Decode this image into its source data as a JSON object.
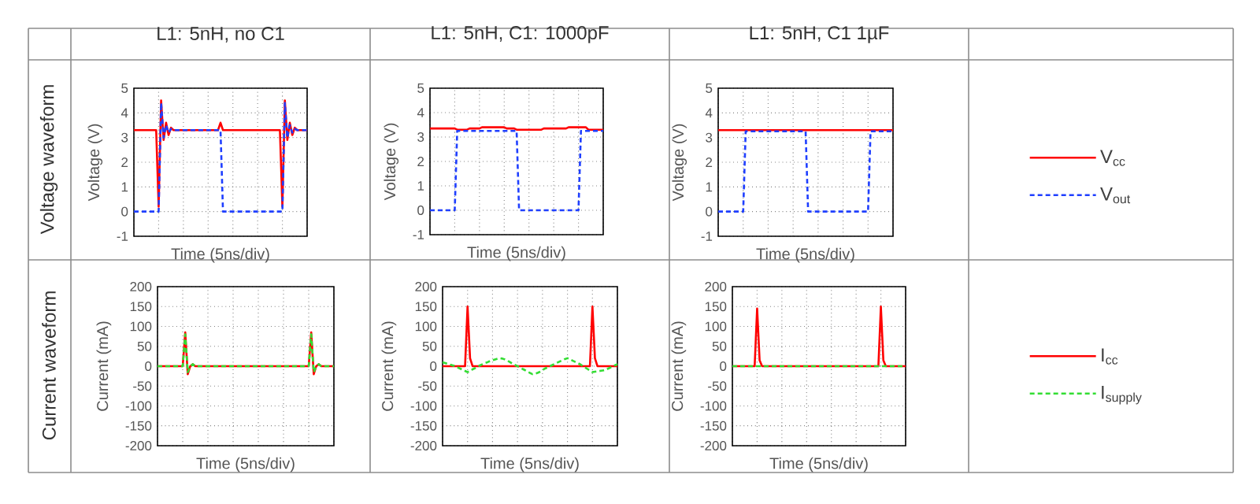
{
  "chart_data": [
    {
      "type": "line",
      "title": "L1: 5nH, no C1",
      "xlabel": "Time (5ns/div)",
      "ylabel": "Voltage (V)",
      "annotations": [
        "Voltage waveform"
      ],
      "categories": [
        null,
        null,
        null,
        null,
        null,
        null,
        null,
        null,
        null,
        null,
        null,
        null,
        null,
        null,
        null,
        null,
        null,
        null,
        null,
        null,
        null,
        null,
        null,
        null,
        null,
        null,
        null,
        null,
        null,
        null,
        null,
        null,
        null,
        null,
        null,
        null,
        null,
        null,
        null,
        null,
        null,
        null,
        null,
        null,
        null,
        null,
        null,
        null,
        null,
        null,
        null,
        null,
        null,
        null,
        null,
        null,
        null,
        null,
        null,
        null,
        null,
        null,
        null,
        null,
        null,
        null,
        null,
        null,
        null,
        null,
        null
      ],
      "ylim": [
        -1,
        5
      ],
      "yticks": [
        -1,
        0,
        1,
        2,
        3,
        4,
        5
      ],
      "tick_labels": "y",
      "grid": true,
      "legend": false,
      "series": [
        {
          "color": "#ff0000",
          "line_style": "solid",
          "values": [
            3.3,
            3.3,
            3.3,
            3.3,
            3.3,
            3.3,
            3.3,
            3.3,
            3.3,
            3.3,
            0.2,
            4.5,
            2.9,
            3.6,
            3.1,
            3.4,
            3.3,
            3.3,
            3.3,
            3.3,
            3.3,
            3.3,
            3.3,
            3.3,
            3.3,
            3.3,
            3.3,
            3.3,
            3.3,
            3.3,
            3.3,
            3.3,
            3.3,
            3.3,
            3.3,
            3.6,
            3.3,
            3.3,
            3.3,
            3.3,
            3.3,
            3.3,
            3.3,
            3.3,
            3.3,
            3.3,
            3.3,
            3.3,
            3.3,
            3.3,
            3.3,
            3.3,
            3.3,
            3.3,
            3.3,
            3.3,
            3.3,
            3.3,
            3.3,
            3.3,
            0.2,
            4.5,
            2.9,
            3.6,
            3.1,
            3.4,
            3.3,
            3.3,
            3.3,
            3.3,
            3.3
          ]
        },
        {
          "color": "#1f3fff",
          "line_style": "dashed",
          "values": [
            0,
            0,
            0,
            0,
            0,
            0,
            0,
            0,
            0,
            0,
            0,
            4.4,
            3.0,
            3.5,
            3.2,
            3.35,
            3.3,
            3.3,
            3.3,
            3.3,
            3.3,
            3.3,
            3.3,
            3.3,
            3.3,
            3.3,
            3.3,
            3.3,
            3.3,
            3.3,
            3.3,
            3.3,
            3.3,
            3.3,
            3.3,
            3.3,
            0,
            0,
            0,
            0,
            0,
            0,
            0,
            0,
            0,
            0,
            0,
            0,
            0,
            0,
            0,
            0,
            0,
            0,
            0,
            0,
            0,
            0,
            0,
            0,
            0,
            4.4,
            3.0,
            3.5,
            3.2,
            3.35,
            3.3,
            3.3,
            3.3,
            3.3,
            3.3
          ]
        }
      ]
    },
    {
      "type": "line",
      "title": "L1: 5nH, C1: 1000pF",
      "xlabel": "Time (5ns/div)",
      "ylabel": "Voltage (V)",
      "categories": [
        null,
        null,
        null,
        null,
        null,
        null,
        null,
        null,
        null,
        null,
        null,
        null,
        null,
        null,
        null,
        null,
        null,
        null,
        null,
        null,
        null,
        null,
        null,
        null,
        null,
        null,
        null,
        null,
        null,
        null,
        null,
        null,
        null,
        null,
        null,
        null,
        null,
        null,
        null,
        null,
        null,
        null,
        null,
        null,
        null,
        null,
        null,
        null,
        null,
        null,
        null,
        null,
        null,
        null,
        null,
        null,
        null,
        null,
        null,
        null,
        null,
        null,
        null,
        null,
        null,
        null,
        null,
        null,
        null,
        null,
        null
      ],
      "ylim": [
        -1,
        5
      ],
      "yticks": [
        -1,
        0,
        1,
        2,
        3,
        4,
        5
      ],
      "tick_labels": "y",
      "grid": true,
      "legend": false,
      "series": [
        {
          "color": "#ff0000",
          "line_style": "solid",
          "values": [
            3.35,
            3.35,
            3.35,
            3.35,
            3.35,
            3.35,
            3.35,
            3.35,
            3.35,
            3.35,
            3.35,
            3.3,
            3.3,
            3.3,
            3.3,
            3.3,
            3.35,
            3.35,
            3.35,
            3.35,
            3.35,
            3.4,
            3.4,
            3.4,
            3.4,
            3.4,
            3.4,
            3.4,
            3.4,
            3.4,
            3.4,
            3.35,
            3.35,
            3.35,
            3.35,
            3.3,
            3.3,
            3.3,
            3.3,
            3.3,
            3.3,
            3.3,
            3.3,
            3.3,
            3.3,
            3.3,
            3.35,
            3.35,
            3.35,
            3.35,
            3.35,
            3.35,
            3.35,
            3.35,
            3.35,
            3.35,
            3.4,
            3.4,
            3.4,
            3.4,
            3.4,
            3.4,
            3.4,
            3.4,
            3.3,
            3.3,
            3.3,
            3.3,
            3.3,
            3.3,
            3.3
          ]
        },
        {
          "color": "#1f3fff",
          "line_style": "dashed",
          "values": [
            0,
            0,
            0,
            0,
            0,
            0,
            0,
            0,
            0,
            0,
            0,
            3.25,
            3.25,
            3.25,
            3.25,
            3.25,
            3.25,
            3.25,
            3.25,
            3.25,
            3.25,
            3.25,
            3.25,
            3.25,
            3.25,
            3.25,
            3.25,
            3.25,
            3.25,
            3.25,
            3.25,
            3.25,
            3.25,
            3.25,
            3.25,
            3.25,
            0,
            0,
            0,
            0,
            0,
            0,
            0,
            0,
            0,
            0,
            0,
            0,
            0,
            0,
            0,
            0,
            0,
            0,
            0,
            0,
            0,
            0,
            0,
            0,
            0,
            3.25,
            3.25,
            3.25,
            3.25,
            3.25,
            3.25,
            3.25,
            3.25,
            3.25,
            3.25
          ]
        }
      ]
    },
    {
      "type": "line",
      "title": "L1: 5nH, C1 1µF",
      "xlabel": "Time (5ns/div)",
      "ylabel": "Voltage (V)",
      "categories": [
        null,
        null,
        null,
        null,
        null,
        null,
        null,
        null,
        null,
        null,
        null,
        null,
        null,
        null,
        null,
        null,
        null,
        null,
        null,
        null,
        null,
        null,
        null,
        null,
        null,
        null,
        null,
        null,
        null,
        null,
        null,
        null,
        null,
        null,
        null,
        null,
        null,
        null,
        null,
        null,
        null,
        null,
        null,
        null,
        null,
        null,
        null,
        null,
        null,
        null,
        null,
        null,
        null,
        null,
        null,
        null,
        null,
        null,
        null,
        null,
        null,
        null,
        null,
        null,
        null,
        null,
        null,
        null,
        null,
        null,
        null
      ],
      "ylim": [
        -1,
        5
      ],
      "yticks": [
        -1,
        0,
        1,
        2,
        3,
        4,
        5
      ],
      "tick_labels": "y",
      "grid": true,
      "legend": "right",
      "series": [
        {
          "name": "V$_{cc}$",
          "color": "#ff0000",
          "line_style": "solid",
          "values": [
            3.3,
            3.3,
            3.3,
            3.3,
            3.3,
            3.3,
            3.3,
            3.3,
            3.3,
            3.3,
            3.3,
            3.3,
            3.3,
            3.3,
            3.3,
            3.3,
            3.3,
            3.3,
            3.3,
            3.3,
            3.3,
            3.3,
            3.3,
            3.3,
            3.3,
            3.3,
            3.3,
            3.3,
            3.3,
            3.3,
            3.3,
            3.3,
            3.3,
            3.3,
            3.3,
            3.3,
            3.3,
            3.3,
            3.3,
            3.3,
            3.3,
            3.3,
            3.3,
            3.3,
            3.3,
            3.3,
            3.3,
            3.3,
            3.3,
            3.3,
            3.3,
            3.3,
            3.3,
            3.3,
            3.3,
            3.3,
            3.3,
            3.3,
            3.3,
            3.3,
            3.3,
            3.3,
            3.3,
            3.3,
            3.3,
            3.3,
            3.3,
            3.3,
            3.3,
            3.3,
            3.3
          ]
        },
        {
          "name": "V$_{out}$",
          "color": "#1f3fff",
          "line_style": "dashed",
          "values": [
            0,
            0,
            0,
            0,
            0,
            0,
            0,
            0,
            0,
            0,
            0,
            3.25,
            3.25,
            3.25,
            3.25,
            3.25,
            3.25,
            3.25,
            3.25,
            3.25,
            3.25,
            3.25,
            3.25,
            3.25,
            3.25,
            3.25,
            3.25,
            3.25,
            3.25,
            3.25,
            3.25,
            3.25,
            3.25,
            3.25,
            3.25,
            3.25,
            0,
            0,
            0,
            0,
            0,
            0,
            0,
            0,
            0,
            0,
            0,
            0,
            0,
            0,
            0,
            0,
            0,
            0,
            0,
            0,
            0,
            0,
            0,
            0,
            0,
            3.25,
            3.25,
            3.25,
            3.25,
            3.25,
            3.25,
            3.25,
            3.25,
            3.25,
            3.25
          ]
        }
      ]
    },
    {
      "type": "line",
      "xlabel": "Time (5ns/div)",
      "ylabel": "Current (mA)",
      "annotations": [
        "Current waveform"
      ],
      "categories": [
        null,
        null,
        null,
        null,
        null,
        null,
        null,
        null,
        null,
        null,
        null,
        null,
        null,
        null,
        null,
        null,
        null,
        null,
        null,
        null,
        null,
        null,
        null,
        null,
        null,
        null,
        null,
        null,
        null,
        null,
        null,
        null,
        null,
        null,
        null,
        null,
        null,
        null,
        null,
        null,
        null,
        null,
        null,
        null,
        null,
        null,
        null,
        null,
        null,
        null,
        null,
        null,
        null,
        null,
        null,
        null,
        null,
        null,
        null,
        null,
        null,
        null,
        null,
        null,
        null,
        null,
        null,
        null,
        null,
        null,
        null
      ],
      "ylim": [
        -200,
        200
      ],
      "yticks": [
        -200,
        -150,
        -100,
        -50,
        0,
        50,
        100,
        150,
        200
      ],
      "tick_labels": "y",
      "grid": true,
      "legend": false,
      "series": [
        {
          "color": "#ff0000",
          "line_style": "solid",
          "values": [
            0,
            0,
            0,
            0,
            0,
            0,
            0,
            0,
            0,
            0,
            0,
            85,
            -20,
            0,
            5,
            0,
            0,
            0,
            0,
            0,
            0,
            0,
            0,
            0,
            0,
            0,
            0,
            0,
            0,
            0,
            0,
            0,
            0,
            0,
            0,
            0,
            0,
            0,
            0,
            0,
            0,
            0,
            0,
            0,
            0,
            0,
            0,
            0,
            0,
            0,
            0,
            0,
            0,
            0,
            0,
            0,
            0,
            0,
            0,
            0,
            0,
            85,
            -20,
            0,
            5,
            0,
            0,
            0,
            0,
            0,
            0
          ]
        },
        {
          "color": "#33dd33",
          "line_style": "dashed",
          "values": [
            0,
            0,
            0,
            0,
            0,
            0,
            0,
            0,
            0,
            0,
            0,
            80,
            -15,
            0,
            5,
            0,
            0,
            0,
            0,
            0,
            0,
            0,
            0,
            0,
            0,
            0,
            0,
            0,
            0,
            0,
            0,
            0,
            0,
            0,
            0,
            0,
            0,
            0,
            0,
            0,
            0,
            0,
            0,
            0,
            0,
            0,
            0,
            0,
            0,
            0,
            0,
            0,
            0,
            0,
            0,
            0,
            0,
            0,
            0,
            0,
            0,
            80,
            -15,
            0,
            5,
            0,
            0,
            0,
            0,
            0,
            0
          ]
        }
      ]
    },
    {
      "type": "line",
      "xlabel": "Time (5ns/div)",
      "ylabel": "Current (mA)",
      "categories": [
        null,
        null,
        null,
        null,
        null,
        null,
        null,
        null,
        null,
        null,
        null,
        null,
        null,
        null,
        null,
        null,
        null,
        null,
        null,
        null,
        null,
        null,
        null,
        null,
        null,
        null,
        null,
        null,
        null,
        null,
        null,
        null,
        null,
        null,
        null,
        null,
        null,
        null,
        null,
        null,
        null,
        null,
        null,
        null,
        null,
        null,
        null,
        null,
        null,
        null,
        null,
        null,
        null,
        null,
        null,
        null,
        null,
        null,
        null,
        null,
        null,
        null,
        null,
        null,
        null,
        null,
        null,
        null,
        null,
        null,
        null
      ],
      "ylim": [
        -200,
        200
      ],
      "yticks": [
        -200,
        -150,
        -100,
        -50,
        0,
        50,
        100,
        150,
        200
      ],
      "tick_labels": "y",
      "grid": true,
      "legend": false,
      "series": [
        {
          "color": "#ff0000",
          "line_style": "solid",
          "values": [
            0,
            0,
            0,
            0,
            0,
            0,
            0,
            0,
            0,
            0,
            150,
            20,
            0,
            0,
            0,
            0,
            0,
            0,
            0,
            0,
            0,
            0,
            0,
            0,
            0,
            0,
            0,
            0,
            0,
            0,
            0,
            0,
            0,
            0,
            0,
            0,
            0,
            0,
            0,
            0,
            0,
            0,
            0,
            0,
            0,
            0,
            0,
            0,
            0,
            0,
            0,
            0,
            0,
            0,
            0,
            0,
            0,
            0,
            0,
            0,
            150,
            20,
            0,
            0,
            0,
            0,
            0,
            0,
            0,
            0,
            0
          ]
        },
        {
          "color": "#33dd33",
          "line_style": "dashed",
          "values": [
            10,
            8,
            6,
            4,
            2,
            0,
            -3,
            -6,
            -9,
            -12,
            -15,
            -12,
            -8,
            -5,
            -2,
            2,
            5,
            8,
            10,
            13,
            15,
            17,
            19,
            20,
            19,
            17,
            14,
            10,
            6,
            3,
            0,
            -3,
            -7,
            -10,
            -14,
            -17,
            -20,
            -19,
            -17,
            -14,
            -10,
            -6,
            -3,
            0,
            3,
            6,
            9,
            12,
            15,
            18,
            20,
            18,
            14,
            11,
            8,
            5,
            1,
            -3,
            -7,
            -11,
            -15,
            -14,
            -13,
            -12,
            -11,
            -10,
            -7,
            -4,
            -1,
            2,
            5
          ]
        }
      ]
    },
    {
      "type": "line",
      "xlabel": "Time (5ns/div)",
      "ylabel": "Current (mA)",
      "categories": [
        null,
        null,
        null,
        null,
        null,
        null,
        null,
        null,
        null,
        null,
        null,
        null,
        null,
        null,
        null,
        null,
        null,
        null,
        null,
        null,
        null,
        null,
        null,
        null,
        null,
        null,
        null,
        null,
        null,
        null,
        null,
        null,
        null,
        null,
        null,
        null,
        null,
        null,
        null,
        null,
        null,
        null,
        null,
        null,
        null,
        null,
        null,
        null,
        null,
        null,
        null,
        null,
        null,
        null,
        null,
        null,
        null,
        null,
        null,
        null,
        null,
        null,
        null,
        null,
        null,
        null,
        null,
        null,
        null,
        null,
        null
      ],
      "ylim": [
        -200,
        200
      ],
      "yticks": [
        -200,
        -150,
        -100,
        -50,
        0,
        50,
        100,
        150,
        200
      ],
      "tick_labels": "y",
      "grid": true,
      "legend": "right",
      "series": [
        {
          "name": "I$_{cc}$",
          "color": "#ff0000",
          "line_style": "solid",
          "values": [
            0,
            0,
            0,
            0,
            0,
            0,
            0,
            0,
            0,
            0,
            145,
            15,
            0,
            0,
            0,
            0,
            0,
            0,
            0,
            0,
            0,
            0,
            0,
            0,
            0,
            0,
            0,
            0,
            0,
            0,
            0,
            0,
            0,
            0,
            0,
            0,
            0,
            0,
            0,
            0,
            0,
            0,
            0,
            0,
            0,
            0,
            0,
            0,
            0,
            0,
            0,
            0,
            0,
            0,
            0,
            0,
            0,
            0,
            0,
            0,
            150,
            15,
            0,
            0,
            0,
            0,
            0,
            0,
            0,
            0,
            0
          ]
        },
        {
          "name": "I$_{supply}$",
          "color": "#33dd33",
          "line_style": "dashed",
          "values": [
            0,
            0,
            0,
            0,
            0,
            0,
            0,
            0,
            0,
            0,
            0,
            0,
            0,
            0,
            0,
            0,
            0,
            0,
            0,
            0,
            0,
            0,
            0,
            0,
            0,
            0,
            0,
            0,
            0,
            0,
            0,
            0,
            0,
            0,
            0,
            0,
            0,
            0,
            0,
            0,
            0,
            0,
            0,
            0,
            0,
            0,
            0,
            0,
            0,
            0,
            0,
            0,
            0,
            0,
            0,
            0,
            0,
            0,
            0,
            0,
            0,
            0,
            0,
            0,
            0,
            0,
            0,
            0,
            0,
            0,
            0
          ]
        }
      ]
    }
  ]
}
